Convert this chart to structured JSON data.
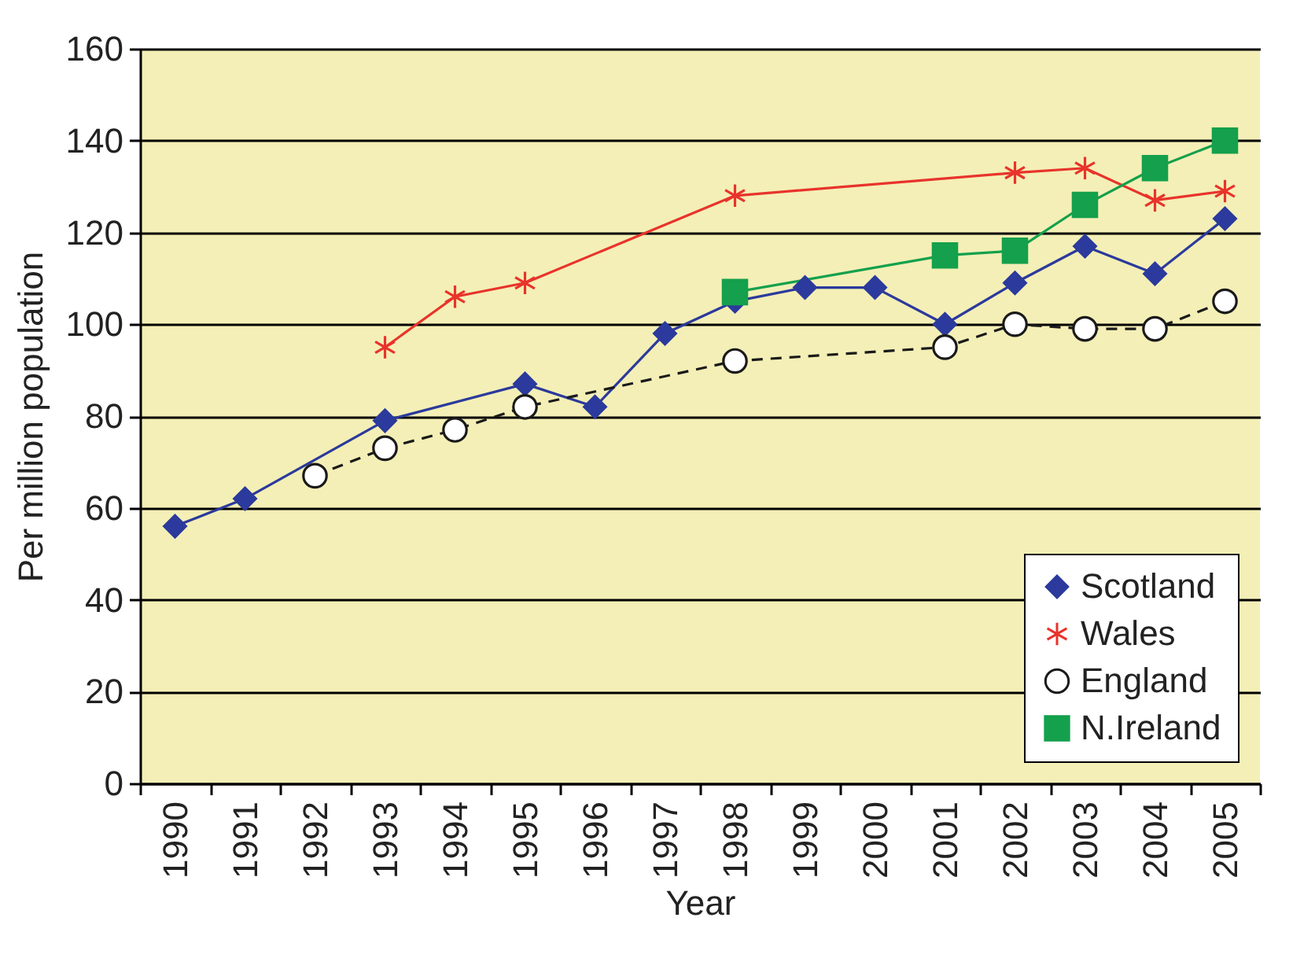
{
  "chart_data": {
    "type": "line",
    "xlabel": "Year",
    "ylabel": "Per million population",
    "categories": [
      "1990",
      "1991",
      "1992",
      "1993",
      "1994",
      "1995",
      "1996",
      "1997",
      "1998",
      "1999",
      "2000",
      "2001",
      "2002",
      "2003",
      "2004",
      "2005"
    ],
    "ylim": [
      0,
      160
    ],
    "yticks": [
      0,
      20,
      40,
      60,
      80,
      100,
      120,
      140,
      160
    ],
    "grid": "y",
    "legend": "bottom right",
    "series": [
      {
        "name": "Scotland",
        "color": "#2b3a9c",
        "marker": "diamond",
        "line_style": "solid",
        "values": [
          56,
          62,
          null,
          79,
          null,
          87,
          82,
          98,
          105,
          108,
          108,
          100,
          109,
          117,
          111,
          123
        ]
      },
      {
        "name": "Wales",
        "color": "#e8332b",
        "marker": "cross",
        "line_style": "solid",
        "values": [
          null,
          null,
          null,
          95,
          106,
          109,
          null,
          null,
          128,
          null,
          null,
          null,
          133,
          134,
          127,
          129
        ]
      },
      {
        "name": "England",
        "color": "#1a1a1a",
        "marker": "circle",
        "line_style": "dashed",
        "values": [
          null,
          null,
          67,
          73,
          77,
          82,
          null,
          null,
          92,
          null,
          null,
          95,
          100,
          99,
          99,
          105
        ]
      },
      {
        "name": "N.Ireland",
        "color": "#14a04c",
        "marker": "square",
        "line_style": "solid",
        "values": [
          null,
          null,
          null,
          null,
          null,
          null,
          null,
          null,
          107,
          null,
          null,
          115,
          116,
          126,
          134,
          140
        ]
      }
    ]
  }
}
